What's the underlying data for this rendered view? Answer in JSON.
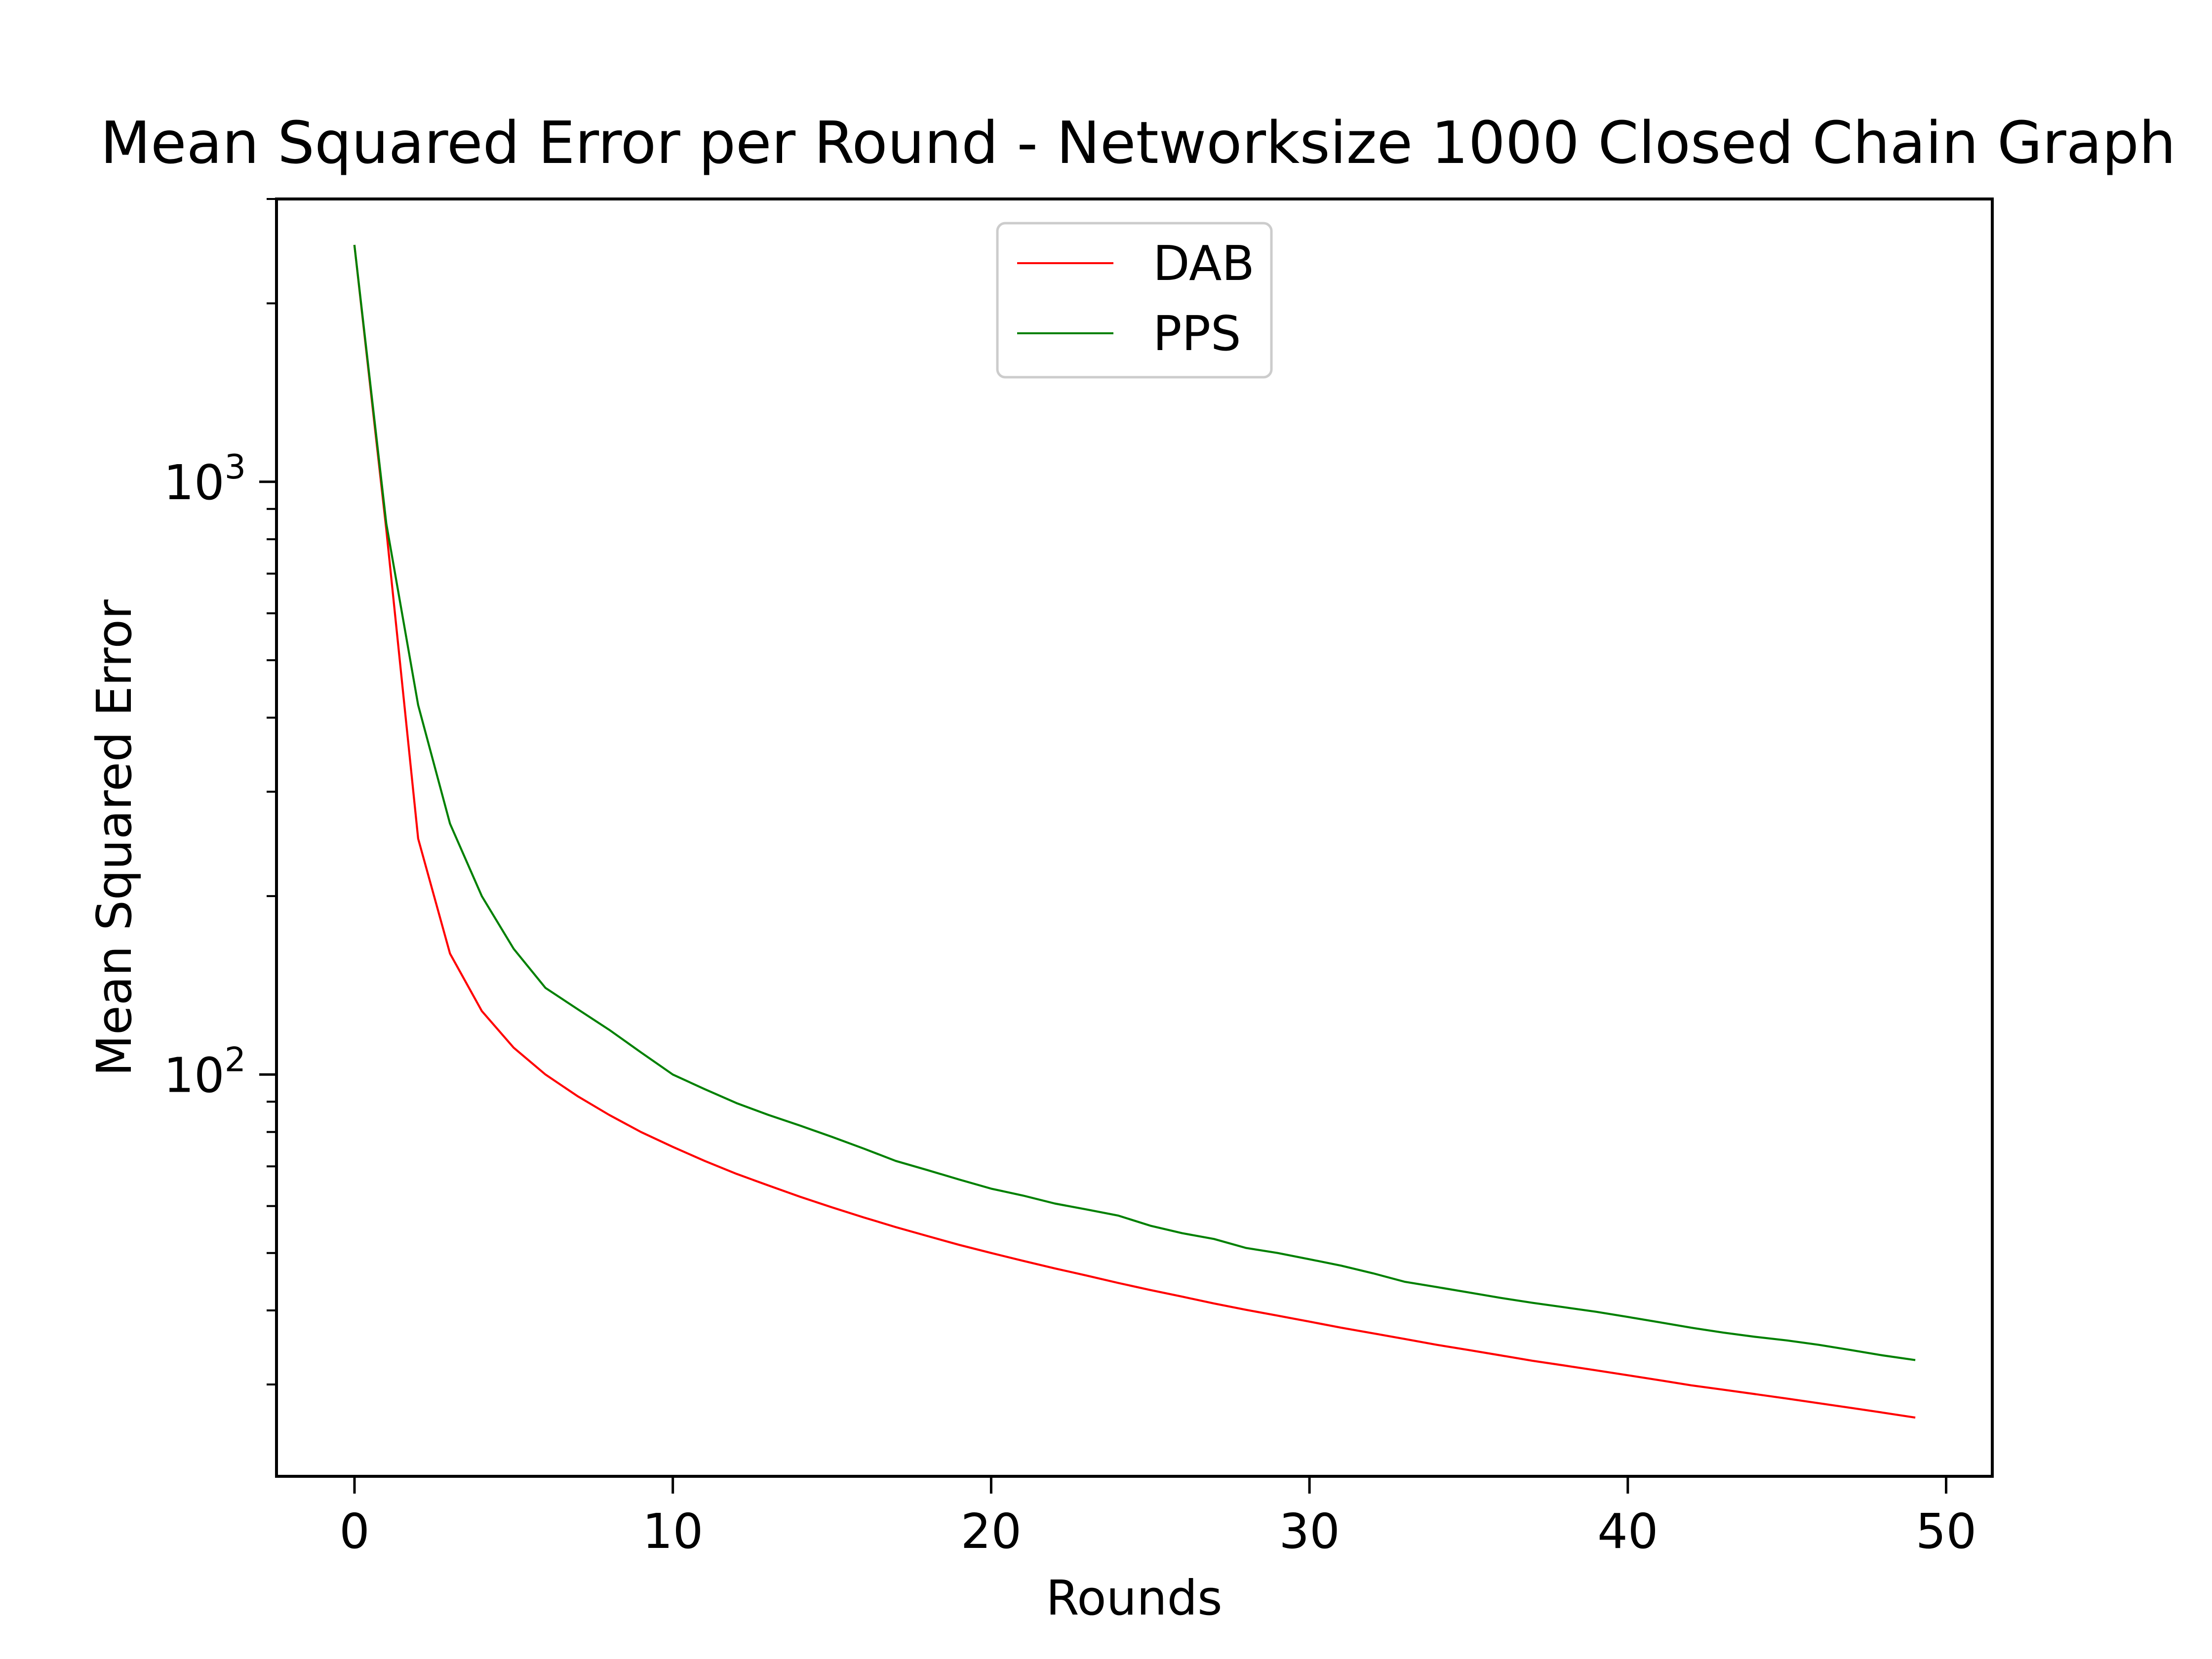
{
  "chart_data": {
    "type": "line",
    "title": "Mean Squared Error per Round - Networksize 1000 Closed Chain Graph",
    "xlabel": "Rounds",
    "ylabel": "Mean Squared Error",
    "yscale": "log",
    "xlim": [
      -2.45,
      51.45
    ],
    "ylim": [
      21,
      3000
    ],
    "x_ticks": [
      0,
      10,
      20,
      30,
      40,
      50
    ],
    "x_tick_labels": [
      "0",
      "10",
      "20",
      "30",
      "40",
      "50"
    ],
    "y_major_ticks": [
      100,
      1000
    ],
    "y_major_tick_labels": [
      {
        "base": "10",
        "exp": "2"
      },
      {
        "base": "10",
        "exp": "3"
      }
    ],
    "grid": false,
    "legend_position": "top-center",
    "x": [
      0,
      1,
      2,
      3,
      4,
      5,
      6,
      7,
      8,
      9,
      10,
      11,
      12,
      13,
      14,
      15,
      16,
      17,
      18,
      19,
      20,
      21,
      22,
      23,
      24,
      25,
      26,
      27,
      28,
      29,
      30,
      31,
      32,
      33,
      34,
      35,
      36,
      37,
      38,
      39,
      40,
      41,
      42,
      43,
      44,
      45,
      46,
      47,
      48,
      49
    ],
    "series": [
      {
        "name": "DAB",
        "color": "#ff0000",
        "values": [
          2500,
          830,
          250,
          160,
          128,
          111,
          100,
          92,
          85.5,
          80,
          75.5,
          71.5,
          68,
          65,
          62.2,
          59.7,
          57.4,
          55.3,
          53.4,
          51.6,
          50.0,
          48.5,
          47.1,
          45.8,
          44.5,
          43.3,
          42.2,
          41.1,
          40.1,
          39.2,
          38.3,
          37.4,
          36.6,
          35.8,
          35.0,
          34.3,
          33.6,
          32.9,
          32.3,
          31.7,
          31.1,
          30.5,
          29.9,
          29.4,
          28.9,
          28.4,
          27.9,
          27.4,
          26.9,
          26.4
        ]
      },
      {
        "name": "PPS",
        "color": "#008000",
        "values": [
          2500,
          850,
          420,
          265,
          200,
          163,
          140,
          129,
          119,
          109,
          100,
          94.5,
          89.5,
          85.5,
          82,
          78.5,
          75,
          71.5,
          69,
          66.5,
          64.2,
          62.5,
          60.6,
          59.2,
          57.8,
          55.6,
          54,
          52.8,
          51,
          50,
          48.8,
          47.6,
          46.2,
          44.7,
          43.8,
          42.9,
          42.0,
          41.2,
          40.5,
          39.8,
          39.0,
          38.2,
          37.4,
          36.7,
          36.1,
          35.6,
          35.0,
          34.3,
          33.6,
          33.0
        ]
      }
    ]
  }
}
